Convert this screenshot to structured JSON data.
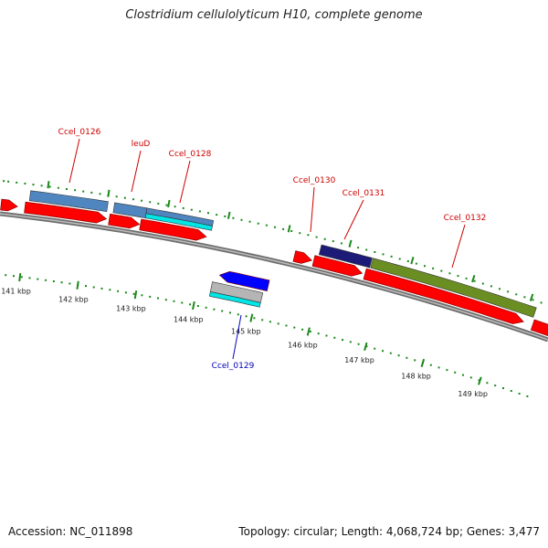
{
  "header": {
    "title": "Clostridium cellulolyticum H10, complete genome"
  },
  "footer": {
    "accession": "Accession: NC_011898",
    "summary": "Topology: circular; Length: 4,068,724 bp; Genes: 3,477"
  },
  "scale": {
    "ticks": [
      "141 kbp",
      "142 kbp",
      "143 kbp",
      "144 kbp",
      "145 kbp",
      "146 kbp",
      "147 kbp",
      "148 kbp",
      "149 kbp"
    ]
  },
  "colors": {
    "cds": "#ff0000",
    "strand_line": "#888888",
    "tick": "#1a8a1a",
    "label_forward": "#cc0000",
    "label_reverse": "#0000bb",
    "feat_steelblue": "#4f86c0",
    "feat_cyan": "#00e5e5",
    "feat_navy": "#1c1c78",
    "feat_olive": "#6b8e23",
    "feat_blue": "#0000ff",
    "feat_gray": "#b5b5b5"
  },
  "genes": [
    {
      "label": "Ccel_0126",
      "strand": "forward"
    },
    {
      "label": "leuD",
      "strand": "forward"
    },
    {
      "label": "Ccel_0128",
      "strand": "forward"
    },
    {
      "label": "Ccel_0129",
      "strand": "reverse"
    },
    {
      "label": "Ccel_0130",
      "strand": "forward"
    },
    {
      "label": "Ccel_0131",
      "strand": "forward"
    },
    {
      "label": "Ccel_0132",
      "strand": "forward"
    }
  ]
}
